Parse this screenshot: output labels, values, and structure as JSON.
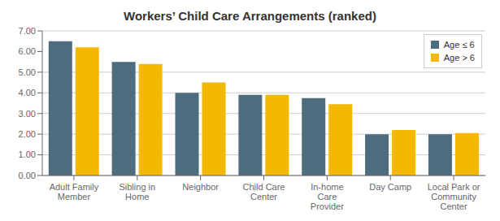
{
  "chart_data": {
    "type": "bar",
    "title": "Workers’ Child Care Arrangements (ranked)",
    "categories": [
      "Adult Family\nMember",
      "Sibling in\nHome",
      "Neighbor",
      "Child Care\nCenter",
      "In-home\nCare\nProvider",
      "Day Camp",
      "Local Park or\nCommunity\nCenter"
    ],
    "series": [
      {
        "name": "Age ≤ 6",
        "color": "#4d6d7e",
        "values": [
          6.5,
          5.5,
          4.0,
          3.9,
          3.75,
          2.0,
          2.0
        ]
      },
      {
        "name": "Age > 6",
        "color": "#f5b800",
        "values": [
          6.2,
          5.4,
          4.5,
          3.9,
          3.45,
          2.2,
          2.05
        ]
      }
    ],
    "ylim": [
      0.0,
      7.0
    ],
    "yticks": [
      {
        "value": 0,
        "label": "0.00"
      },
      {
        "value": 1,
        "label": "1.00"
      },
      {
        "value": 2,
        "label": "2.00"
      },
      {
        "value": 3,
        "label": "3.00"
      },
      {
        "value": 4,
        "label": "4.00"
      },
      {
        "value": 5,
        "label": "5.00"
      },
      {
        "value": 6,
        "label": "6.00"
      },
      {
        "value": 7,
        "label": "7.00"
      }
    ],
    "grid": true,
    "legend": "upper right"
  }
}
